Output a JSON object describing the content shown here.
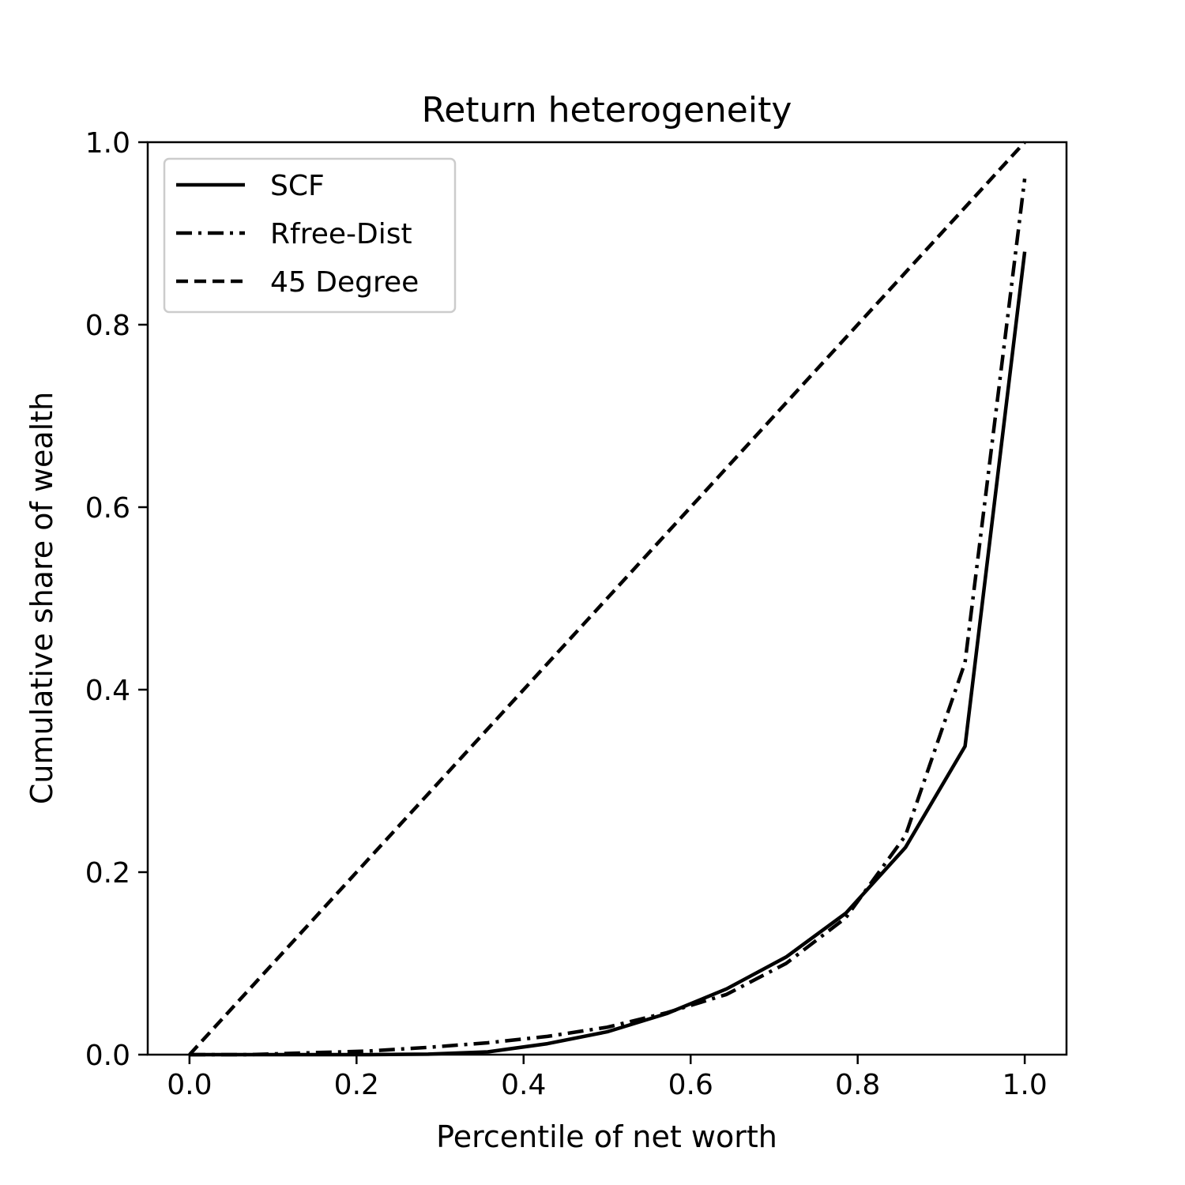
{
  "chart_data": {
    "type": "line",
    "title": "Return heterogeneity",
    "xlabel": "Percentile of net worth",
    "ylabel": "Cumulative share of wealth",
    "xlim": [
      -0.05,
      1.05
    ],
    "ylim": [
      0.0,
      1.0
    ],
    "xticks": [
      "0.0",
      "0.2",
      "0.4",
      "0.6",
      "0.8",
      "1.0"
    ],
    "yticks": [
      "0.0",
      "0.2",
      "0.4",
      "0.6",
      "0.8",
      "1.0"
    ],
    "grid": false,
    "legend_position": "upper-left",
    "series": [
      {
        "name": "SCF",
        "style": "solid",
        "color": "#000000",
        "x": [
          0.0,
          0.0714,
          0.1429,
          0.2143,
          0.2857,
          0.3571,
          0.4286,
          0.5,
          0.5714,
          0.6429,
          0.7143,
          0.7857,
          0.8571,
          0.9286,
          1.0
        ],
        "y": [
          0.0,
          0.0,
          0.0,
          0.0,
          0.0005,
          0.003,
          0.012,
          0.025,
          0.045,
          0.072,
          0.107,
          0.155,
          0.227,
          0.338,
          0.88
        ]
      },
      {
        "name": "Rfree-Dist",
        "style": "dashdot",
        "color": "#000000",
        "x": [
          0.0,
          0.0714,
          0.1429,
          0.2143,
          0.2857,
          0.3571,
          0.4286,
          0.5,
          0.5714,
          0.6429,
          0.7143,
          0.7857,
          0.8571,
          0.9286,
          1.0
        ],
        "y": [
          0.0,
          0.0,
          0.002,
          0.004,
          0.008,
          0.013,
          0.02,
          0.03,
          0.046,
          0.066,
          0.1,
          0.15,
          0.24,
          0.43,
          0.96
        ]
      },
      {
        "name": "45 Degree",
        "style": "dashed",
        "color": "#000000",
        "x": [
          0.0,
          1.0
        ],
        "y": [
          0.0,
          1.0
        ]
      }
    ]
  }
}
